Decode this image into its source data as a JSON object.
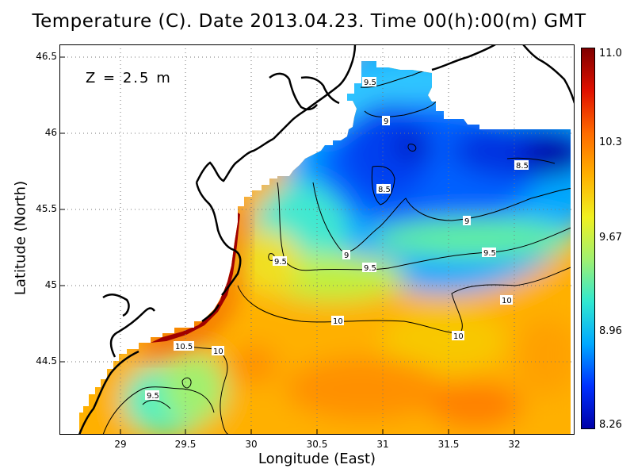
{
  "title": "Temperature (C). Date 2013.04.23. Time 00(h):00(m) GMT",
  "depth_label": "Z = 2.5 m",
  "xlabel": "Longitude (East)",
  "ylabel": "Latitude (North)",
  "x_ticks": [
    "29",
    "29.5",
    "30",
    "30.5",
    "31",
    "31.5",
    "32"
  ],
  "y_ticks": [
    "46.5",
    "46",
    "45.5",
    "45",
    "44.5"
  ],
  "colorbar_ticks": [
    "11.0",
    "10.3",
    "9.67",
    "8.96",
    "8.26"
  ],
  "contour_labels": [
    "9.5",
    "9",
    "8.5",
    "8.5",
    "9",
    "9",
    "9.5",
    "9.5",
    "9.5",
    "10",
    "10",
    "10",
    "10.5",
    "9.5"
  ],
  "colors": {
    "cold": "#0000a8",
    "cool": "#00a8ff",
    "mid": "#a0f070",
    "warm": "#ffb000",
    "hot": "#800000"
  },
  "chart_data": {
    "type": "heatmap",
    "title": "Temperature (C). Date 2013.04.23. Time 00(h):00(m) GMT",
    "xlabel": "Longitude (East)",
    "ylabel": "Latitude (North)",
    "xlim": [
      28.5,
      32.45
    ],
    "ylim": [
      44.05,
      46.55
    ],
    "colorbar_range": [
      8.26,
      11.0
    ],
    "contour_levels": [
      8.5,
      9,
      9.5,
      10,
      10.5
    ],
    "grid": true
  }
}
